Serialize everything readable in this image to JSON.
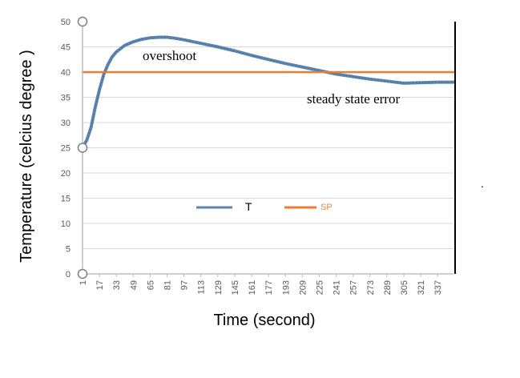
{
  "chart_data": {
    "type": "line",
    "title": "",
    "xlabel": "Time (second)",
    "ylabel": "Temperature (celcius degree )",
    "ylim": [
      0,
      50
    ],
    "xlim": [
      1,
      352
    ],
    "yticks": [
      "0",
      "5",
      "10",
      "15",
      "20",
      "25",
      "30",
      "35",
      "40",
      "45",
      "50"
    ],
    "xticks": [
      "1",
      "17",
      "33",
      "49",
      "65",
      "81",
      "97",
      "113",
      "129",
      "145",
      "161",
      "177",
      "193",
      "209",
      "225",
      "241",
      "257",
      "273",
      "289",
      "305",
      "321",
      "337"
    ],
    "grid": true,
    "legend_position": "center",
    "annotations": [
      {
        "text": "overshoot"
      },
      {
        "text": "steady state error"
      }
    ],
    "series": [
      {
        "name": "T",
        "color": "#5b86b0",
        "x": [
          1,
          5,
          9,
          13,
          17,
          21,
          25,
          29,
          33,
          41,
          49,
          57,
          65,
          73,
          81,
          89,
          97,
          113,
          129,
          145,
          161,
          177,
          193,
          209,
          225,
          241,
          257,
          273,
          289,
          305,
          321,
          337,
          352
        ],
        "y": [
          25,
          26.5,
          29,
          33,
          36.5,
          39.5,
          41.5,
          43,
          44,
          45.3,
          46,
          46.5,
          46.8,
          46.9,
          46.9,
          46.7,
          46.4,
          45.7,
          45,
          44.2,
          43.3,
          42.5,
          41.7,
          41,
          40.3,
          39.6,
          39.1,
          38.6,
          38.2,
          37.8,
          37.9,
          38,
          38
        ]
      },
      {
        "name": "SP",
        "color": "#ed7d31",
        "x": [
          1,
          352
        ],
        "y": [
          40,
          40
        ]
      }
    ]
  },
  "page_marks": {
    "dot": "."
  }
}
